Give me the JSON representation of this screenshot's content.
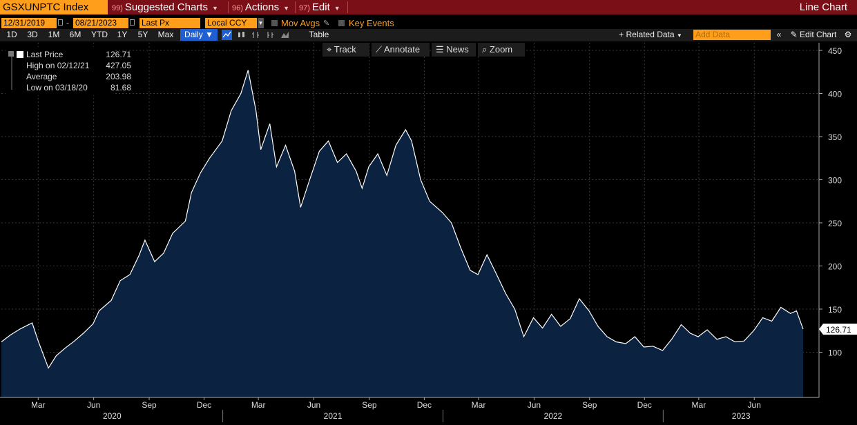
{
  "header": {
    "ticker": "GSXUNPTC Index",
    "menus": [
      {
        "num": "99)",
        "label": "Suggested Charts"
      },
      {
        "num": "96)",
        "label": "Actions"
      },
      {
        "num": "97)",
        "label": "Edit"
      }
    ],
    "chart_type": "Line Chart"
  },
  "controls": {
    "start_date": "12/31/2019",
    "end_date": "08/21/2023",
    "field": "Last Px",
    "currency": "Local CCY",
    "mov_avgs": "Mov Avgs",
    "key_events": "Key Events",
    "ranges": [
      "1D",
      "3D",
      "1M",
      "6M",
      "YTD",
      "1Y",
      "5Y",
      "Max"
    ],
    "frequency": "Daily",
    "table": "Table",
    "related_data": "Related Data",
    "add_data_placeholder": "Add Data",
    "edit_chart": "Edit Chart"
  },
  "tools": {
    "track": "Track",
    "annotate": "Annotate",
    "news": "News",
    "zoom": "Zoom"
  },
  "legend": {
    "last_label": "Last Price",
    "last_value": "126.71",
    "high_label": "High on 02/12/21",
    "high_value": "427.05",
    "avg_label": "Average",
    "avg_value": "203.98",
    "low_label": "Low on 03/18/20",
    "low_value": "81.68"
  },
  "colors": {
    "accent": "#ff9e1b",
    "topbar": "#7a0f17",
    "fill": "#0b2240",
    "line": "#ffffff"
  },
  "chart_data": {
    "type": "area",
    "title": "GSXUNPTC Index",
    "series": [
      {
        "name": "Last Price",
        "points": [
          [
            "2019-12-31",
            112
          ],
          [
            "2020-01-15",
            120
          ],
          [
            "2020-01-31",
            127
          ],
          [
            "2020-02-20",
            134
          ],
          [
            "2020-03-01",
            113
          ],
          [
            "2020-03-18",
            81.68
          ],
          [
            "2020-03-31",
            96
          ],
          [
            "2020-04-15",
            105
          ],
          [
            "2020-04-30",
            113
          ],
          [
            "2020-05-15",
            122
          ],
          [
            "2020-05-31",
            133
          ],
          [
            "2020-06-10",
            148
          ],
          [
            "2020-06-30",
            160
          ],
          [
            "2020-07-15",
            183
          ],
          [
            "2020-07-31",
            190
          ],
          [
            "2020-08-15",
            212
          ],
          [
            "2020-08-25",
            230
          ],
          [
            "2020-09-10",
            205
          ],
          [
            "2020-09-25",
            215
          ],
          [
            "2020-10-10",
            238
          ],
          [
            "2020-10-31",
            252
          ],
          [
            "2020-11-10",
            285
          ],
          [
            "2020-11-25",
            308
          ],
          [
            "2020-12-10",
            325
          ],
          [
            "2020-12-31",
            345
          ],
          [
            "2021-01-15",
            380
          ],
          [
            "2021-01-31",
            400
          ],
          [
            "2021-02-12",
            427.05
          ],
          [
            "2021-02-25",
            380
          ],
          [
            "2021-03-05",
            335
          ],
          [
            "2021-03-20",
            365
          ],
          [
            "2021-03-31",
            315
          ],
          [
            "2021-04-15",
            340
          ],
          [
            "2021-04-30",
            310
          ],
          [
            "2021-05-10",
            268
          ],
          [
            "2021-05-25",
            300
          ],
          [
            "2021-06-10",
            333
          ],
          [
            "2021-06-25",
            345
          ],
          [
            "2021-07-10",
            320
          ],
          [
            "2021-07-25",
            330
          ],
          [
            "2021-08-10",
            310
          ],
          [
            "2021-08-20",
            290
          ],
          [
            "2021-08-31",
            315
          ],
          [
            "2021-09-15",
            330
          ],
          [
            "2021-09-30",
            305
          ],
          [
            "2021-10-15",
            340
          ],
          [
            "2021-10-31",
            358
          ],
          [
            "2021-11-10",
            345
          ],
          [
            "2021-11-25",
            300
          ],
          [
            "2021-12-10",
            275
          ],
          [
            "2021-12-31",
            262
          ],
          [
            "2022-01-15",
            250
          ],
          [
            "2022-01-31",
            220
          ],
          [
            "2022-02-15",
            195
          ],
          [
            "2022-02-28",
            190
          ],
          [
            "2022-03-15",
            213
          ],
          [
            "2022-03-31",
            190
          ],
          [
            "2022-04-15",
            168
          ],
          [
            "2022-04-30",
            150
          ],
          [
            "2022-05-15",
            118
          ],
          [
            "2022-05-31",
            140
          ],
          [
            "2022-06-15",
            128
          ],
          [
            "2022-06-30",
            144
          ],
          [
            "2022-07-15",
            130
          ],
          [
            "2022-07-31",
            139
          ],
          [
            "2022-08-15",
            162
          ],
          [
            "2022-08-31",
            148
          ],
          [
            "2022-09-15",
            130
          ],
          [
            "2022-09-30",
            118
          ],
          [
            "2022-10-15",
            112
          ],
          [
            "2022-10-31",
            110
          ],
          [
            "2022-11-15",
            118
          ],
          [
            "2022-11-30",
            106
          ],
          [
            "2022-12-15",
            107
          ],
          [
            "2022-12-31",
            102
          ],
          [
            "2023-01-15",
            115
          ],
          [
            "2023-01-31",
            132
          ],
          [
            "2023-02-15",
            122
          ],
          [
            "2023-02-28",
            118
          ],
          [
            "2023-03-15",
            126
          ],
          [
            "2023-03-31",
            115
          ],
          [
            "2023-04-15",
            118
          ],
          [
            "2023-04-30",
            112
          ],
          [
            "2023-05-15",
            113
          ],
          [
            "2023-05-31",
            125
          ],
          [
            "2023-06-15",
            140
          ],
          [
            "2023-06-30",
            136
          ],
          [
            "2023-07-15",
            152
          ],
          [
            "2023-07-31",
            145
          ],
          [
            "2023-08-10",
            148
          ],
          [
            "2023-08-21",
            126.71
          ]
        ]
      }
    ],
    "x_range": [
      "2019-12-31",
      "2023-08-21"
    ],
    "ylim": [
      50,
      450
    ],
    "y_ticks": [
      100,
      150,
      200,
      250,
      300,
      350,
      400,
      450
    ],
    "month_ticks": [
      {
        "date": "2020-03-01",
        "label": "Mar"
      },
      {
        "date": "2020-06-01",
        "label": "Jun"
      },
      {
        "date": "2020-09-01",
        "label": "Sep"
      },
      {
        "date": "2020-12-01",
        "label": "Dec"
      },
      {
        "date": "2021-03-01",
        "label": "Mar"
      },
      {
        "date": "2021-06-01",
        "label": "Jun"
      },
      {
        "date": "2021-09-01",
        "label": "Sep"
      },
      {
        "date": "2021-12-01",
        "label": "Dec"
      },
      {
        "date": "2022-03-01",
        "label": "Mar"
      },
      {
        "date": "2022-06-01",
        "label": "Jun"
      },
      {
        "date": "2022-09-01",
        "label": "Sep"
      },
      {
        "date": "2022-12-01",
        "label": "Dec"
      },
      {
        "date": "2023-03-01",
        "label": "Mar"
      },
      {
        "date": "2023-06-01",
        "label": "Jun"
      }
    ],
    "year_labels": [
      "2020",
      "2021",
      "2022",
      "2023"
    ],
    "last_value_label": "126.71",
    "grid": true
  }
}
